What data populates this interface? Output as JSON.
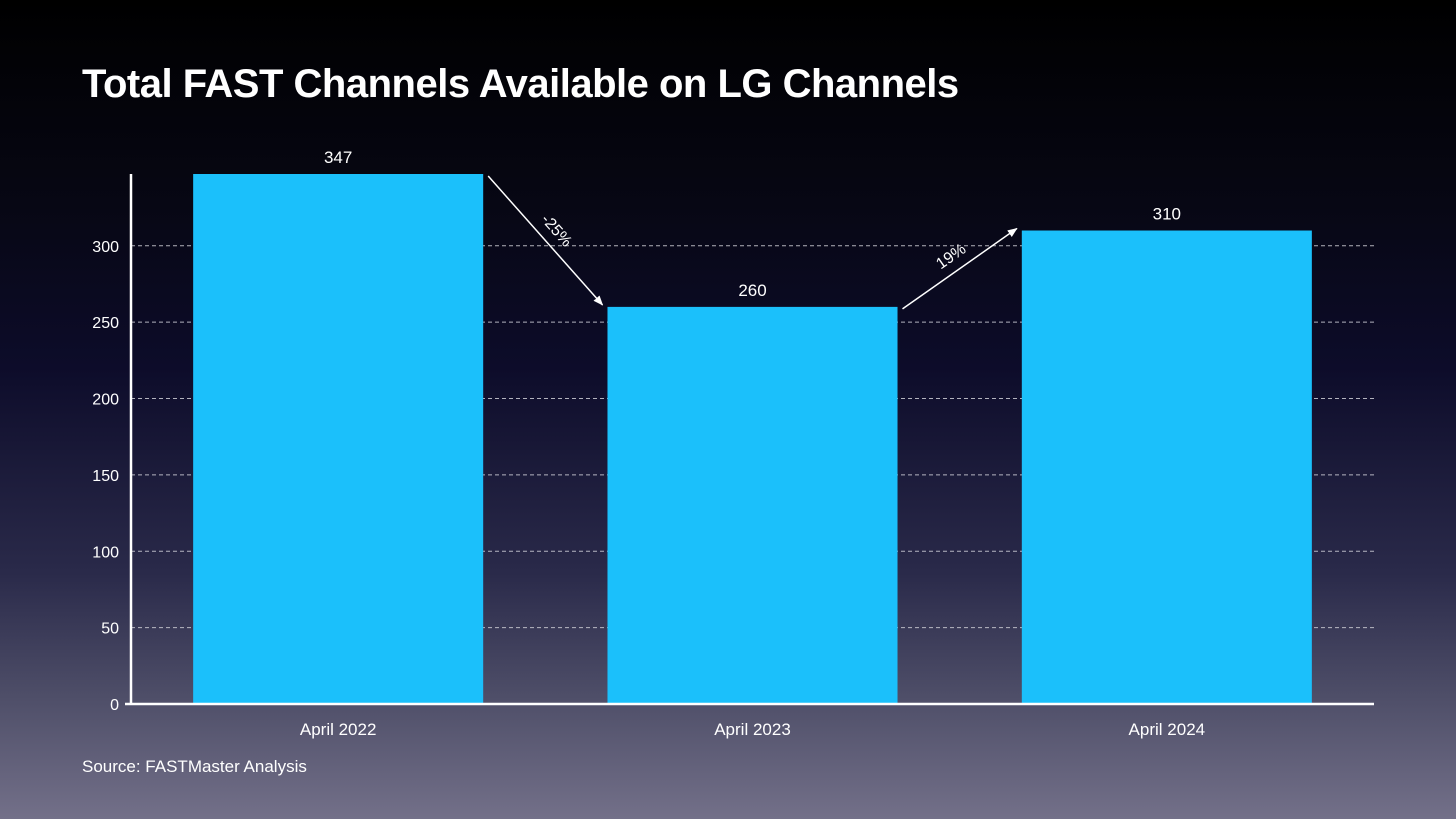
{
  "title": "Total FAST Channels Available on LG Channels",
  "source": "Source: FASTMaster Analysis",
  "colors": {
    "bar": "#1bc0fb",
    "text": "#ffffff",
    "grid": "#d0d0d8"
  },
  "chart_data": {
    "type": "bar",
    "title": "Total FAST Channels Available on LG Channels",
    "categories": [
      "April 2022",
      "April 2023",
      "April 2024"
    ],
    "values": [
      347,
      260,
      310
    ],
    "value_labels": [
      "347",
      "260",
      "310"
    ],
    "ylim": [
      0,
      347
    ],
    "yticks": [
      0,
      50,
      100,
      150,
      200,
      250,
      300
    ],
    "ytick_labels": [
      "0",
      "50",
      "100",
      "150",
      "200",
      "250",
      "300"
    ],
    "grid": true,
    "xlabel": "",
    "ylabel": "",
    "annotations": [
      {
        "from": 0,
        "to": 1,
        "label": "-25%"
      },
      {
        "from": 1,
        "to": 2,
        "label": "19%"
      }
    ]
  }
}
